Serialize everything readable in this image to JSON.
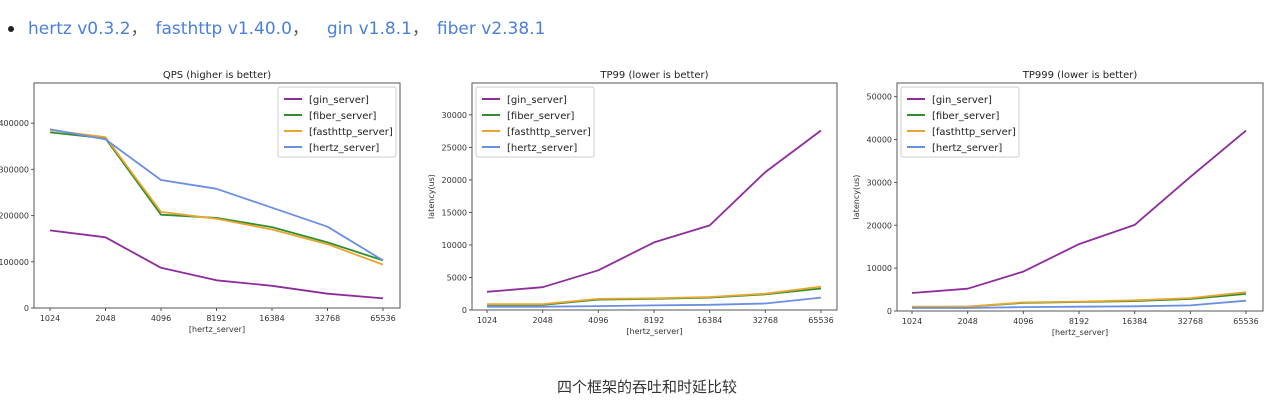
{
  "versions": [
    {
      "label": "hertz v0.3.2",
      "sep": "，"
    },
    {
      "label": "fasthttp v1.40.0",
      "sep": "，"
    },
    {
      "label": "gin v1.8.1",
      "sep": "，"
    },
    {
      "label": "fiber v2.38.1",
      "sep": ""
    }
  ],
  "caption": "四个框架的吞吐和时延比较",
  "colors": {
    "gin_server": "#8e2c9c",
    "fiber_server": "#2f8f2f",
    "fasthttp_server": "#eaa531",
    "hertz_server": "#6a8fe2",
    "link": "#4a7fe0"
  },
  "chart_data": [
    {
      "type": "line",
      "title": "QPS (higher is better)",
      "xlabel": "[hertz_server]",
      "ylabel": "",
      "categories": [
        "1024",
        "2048",
        "4096",
        "8192",
        "16384",
        "32768",
        "65536"
      ],
      "yticks": [
        0,
        100000,
        200000,
        300000,
        400000
      ],
      "ylim": [
        0,
        487000
      ],
      "legend": "top-right",
      "grid": false,
      "series": [
        {
          "name": "[gin_server]",
          "color": "#8e2c9c",
          "values": [
            168000,
            153000,
            87000,
            60000,
            48000,
            31000,
            21000
          ]
        },
        {
          "name": "[fiber_server]",
          "color": "#2f8f2f",
          "values": [
            380000,
            367000,
            202000,
            195000,
            175000,
            142000,
            103000
          ]
        },
        {
          "name": "[fasthttp_server]",
          "color": "#eaa531",
          "values": [
            385000,
            370000,
            208000,
            193000,
            170000,
            138000,
            94000
          ]
        },
        {
          "name": "[hertz_server]",
          "color": "#6a8fe2",
          "values": [
            387000,
            365000,
            277000,
            258000,
            217000,
            176000,
            103000
          ]
        }
      ]
    },
    {
      "type": "line",
      "title": "TP99 (lower is better)",
      "xlabel": "[hertz_server]",
      "ylabel": "latency(us)",
      "categories": [
        "1024",
        "2048",
        "4096",
        "8192",
        "16384",
        "32768",
        "65536"
      ],
      "yticks": [
        0,
        5000,
        10000,
        15000,
        20000,
        25000,
        30000
      ],
      "ylim": [
        0,
        34900
      ],
      "legend": "top-left",
      "grid": false,
      "series": [
        {
          "name": "[gin_server]",
          "color": "#8e2c9c",
          "values": [
            2800,
            3500,
            6100,
            10400,
            13000,
            21200,
            27600
          ]
        },
        {
          "name": "[fiber_server]",
          "color": "#2f8f2f",
          "values": [
            800,
            800,
            1600,
            1700,
            1900,
            2400,
            3300
          ]
        },
        {
          "name": "[fasthttp_server]",
          "color": "#eaa531",
          "values": [
            900,
            900,
            1700,
            1800,
            2000,
            2500,
            3600
          ]
        },
        {
          "name": "[hertz_server]",
          "color": "#6a8fe2",
          "values": [
            500,
            500,
            600,
            700,
            800,
            1000,
            1900
          ]
        }
      ]
    },
    {
      "type": "line",
      "title": "TP999 (lower is better)",
      "xlabel": "[hertz_server]",
      "ylabel": "latency(us)",
      "categories": [
        "1024",
        "2048",
        "4096",
        "8192",
        "16384",
        "32768",
        "65536"
      ],
      "yticks": [
        0,
        10000,
        20000,
        30000,
        40000,
        50000
      ],
      "ylim": [
        0,
        53200
      ],
      "legend": "top-left",
      "grid": false,
      "series": [
        {
          "name": "[gin_server]",
          "color": "#8e2c9c",
          "values": [
            4200,
            5200,
            9200,
            15600,
            20100,
            31300,
            42100
          ]
        },
        {
          "name": "[fiber_server]",
          "color": "#2f8f2f",
          "values": [
            900,
            1000,
            1900,
            2100,
            2300,
            2800,
            4000
          ]
        },
        {
          "name": "[fasthttp_server]",
          "color": "#eaa531",
          "values": [
            1000,
            1000,
            2000,
            2200,
            2500,
            3000,
            4400
          ]
        },
        {
          "name": "[hertz_server]",
          "color": "#6a8fe2",
          "values": [
            700,
            700,
            900,
            1000,
            1100,
            1300,
            2400
          ]
        }
      ]
    }
  ]
}
